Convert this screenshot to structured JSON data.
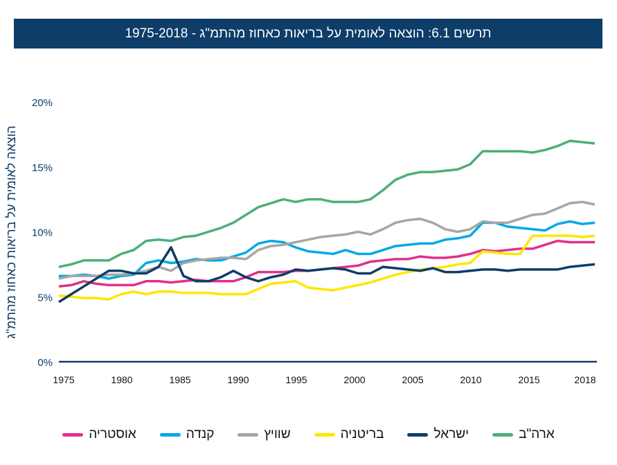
{
  "title": "תרשים 6.1: הוצאה לאומית על בריאות כאחוז מהתמ\"ג - 1975-2018",
  "chart_data": {
    "type": "line",
    "title": "תרשים 6.1: הוצאה לאומית על בריאות כאחוז מהתמ\"ג - 1975-2018",
    "ylabel": "הוצאה לאומית על בריאות כאחוז מהתמ\"ג",
    "xlabel": "",
    "ylim": [
      0,
      20
    ],
    "yticks": [
      "0%",
      "5%",
      "10%",
      "15%",
      "20%"
    ],
    "xticks": [
      "1975",
      "1980",
      "1985",
      "1990",
      "1995",
      "2000",
      "2005",
      "2010",
      "2015",
      "2018"
    ],
    "grid": false,
    "legend": "bottom",
    "x": [
      1975,
      1976,
      1977,
      1978,
      1979,
      1980,
      1981,
      1982,
      1983,
      1984,
      1985,
      1986,
      1987,
      1988,
      1989,
      1990,
      1991,
      1992,
      1993,
      1994,
      1995,
      1996,
      1997,
      1998,
      1999,
      2000,
      2001,
      2002,
      2003,
      2004,
      2005,
      2006,
      2007,
      2008,
      2009,
      2010,
      2011,
      2012,
      2013,
      2014,
      2015,
      2016,
      2017,
      2018
    ],
    "series": [
      {
        "name": "ארה\"ב",
        "color": "#4caf7a",
        "values": [
          7.3,
          7.5,
          7.8,
          7.8,
          7.8,
          8.3,
          8.6,
          9.3,
          9.4,
          9.3,
          9.6,
          9.7,
          10.0,
          10.3,
          10.7,
          11.3,
          11.9,
          12.2,
          12.5,
          12.3,
          12.5,
          12.5,
          12.3,
          12.3,
          12.3,
          12.5,
          13.2,
          14.0,
          14.4,
          14.6,
          14.6,
          14.7,
          14.8,
          15.2,
          16.2,
          16.2,
          16.2,
          16.2,
          16.1,
          16.3,
          16.6,
          17.0,
          16.9,
          16.8
        ]
      },
      {
        "name": "ישראל",
        "color": "#0d3d68",
        "values": [
          4.6,
          5.2,
          5.8,
          6.4,
          7.0,
          7.0,
          6.8,
          6.8,
          7.3,
          8.8,
          6.6,
          6.2,
          6.2,
          6.5,
          7.0,
          6.5,
          6.2,
          6.5,
          6.7,
          7.1,
          7.0,
          7.1,
          7.2,
          7.1,
          6.8,
          6.8,
          7.3,
          7.2,
          7.1,
          7.0,
          7.2,
          6.9,
          6.9,
          7.0,
          7.1,
          7.1,
          7.0,
          7.1,
          7.1,
          7.1,
          7.1,
          7.3,
          7.4,
          7.5
        ]
      },
      {
        "name": "בריטניה",
        "color": "#ffe600",
        "values": [
          5.1,
          5.0,
          4.9,
          4.9,
          4.8,
          5.2,
          5.4,
          5.2,
          5.4,
          5.4,
          5.3,
          5.3,
          5.3,
          5.2,
          5.2,
          5.2,
          5.6,
          6.0,
          6.1,
          6.2,
          5.7,
          5.6,
          5.5,
          5.7,
          5.9,
          6.1,
          6.4,
          6.7,
          6.9,
          7.1,
          7.2,
          7.3,
          7.5,
          7.6,
          8.5,
          8.4,
          8.3,
          8.3,
          9.7,
          9.7,
          9.7,
          9.7,
          9.6,
          9.7
        ]
      },
      {
        "name": "שוויץ",
        "color": "#a6a6a6",
        "values": [
          6.4,
          6.6,
          6.6,
          6.6,
          6.7,
          6.7,
          6.8,
          7.0,
          7.3,
          7.0,
          7.6,
          7.8,
          7.9,
          8.0,
          8.0,
          7.9,
          8.6,
          8.9,
          9.0,
          9.2,
          9.4,
          9.6,
          9.7,
          9.8,
          10.0,
          9.8,
          10.2,
          10.7,
          10.9,
          11.0,
          10.7,
          10.2,
          10.0,
          10.2,
          10.8,
          10.7,
          10.7,
          11.0,
          11.3,
          11.4,
          11.8,
          12.2,
          12.3,
          12.1
        ]
      },
      {
        "name": "קנדה",
        "color": "#00a8e8",
        "values": [
          6.6,
          6.6,
          6.7,
          6.6,
          6.4,
          6.6,
          6.7,
          7.6,
          7.8,
          7.6,
          7.7,
          7.9,
          7.8,
          7.8,
          8.1,
          8.4,
          9.1,
          9.3,
          9.2,
          8.8,
          8.5,
          8.4,
          8.3,
          8.6,
          8.3,
          8.3,
          8.6,
          8.9,
          9.0,
          9.1,
          9.1,
          9.4,
          9.5,
          9.7,
          10.7,
          10.7,
          10.4,
          10.3,
          10.2,
          10.1,
          10.6,
          10.8,
          10.6,
          10.7
        ]
      },
      {
        "name": "אוסטריה",
        "color": "#e0308a",
        "values": [
          5.8,
          5.9,
          6.2,
          6.0,
          5.9,
          5.9,
          5.9,
          6.2,
          6.2,
          6.1,
          6.2,
          6.3,
          6.2,
          6.2,
          6.2,
          6.5,
          6.9,
          6.9,
          6.9,
          7.0,
          7.0,
          7.1,
          7.2,
          7.3,
          7.4,
          7.7,
          7.8,
          7.9,
          7.9,
          8.1,
          8.0,
          8.0,
          8.1,
          8.3,
          8.6,
          8.5,
          8.6,
          8.7,
          8.7,
          9.0,
          9.3,
          9.2,
          9.2,
          9.2
        ]
      }
    ]
  }
}
